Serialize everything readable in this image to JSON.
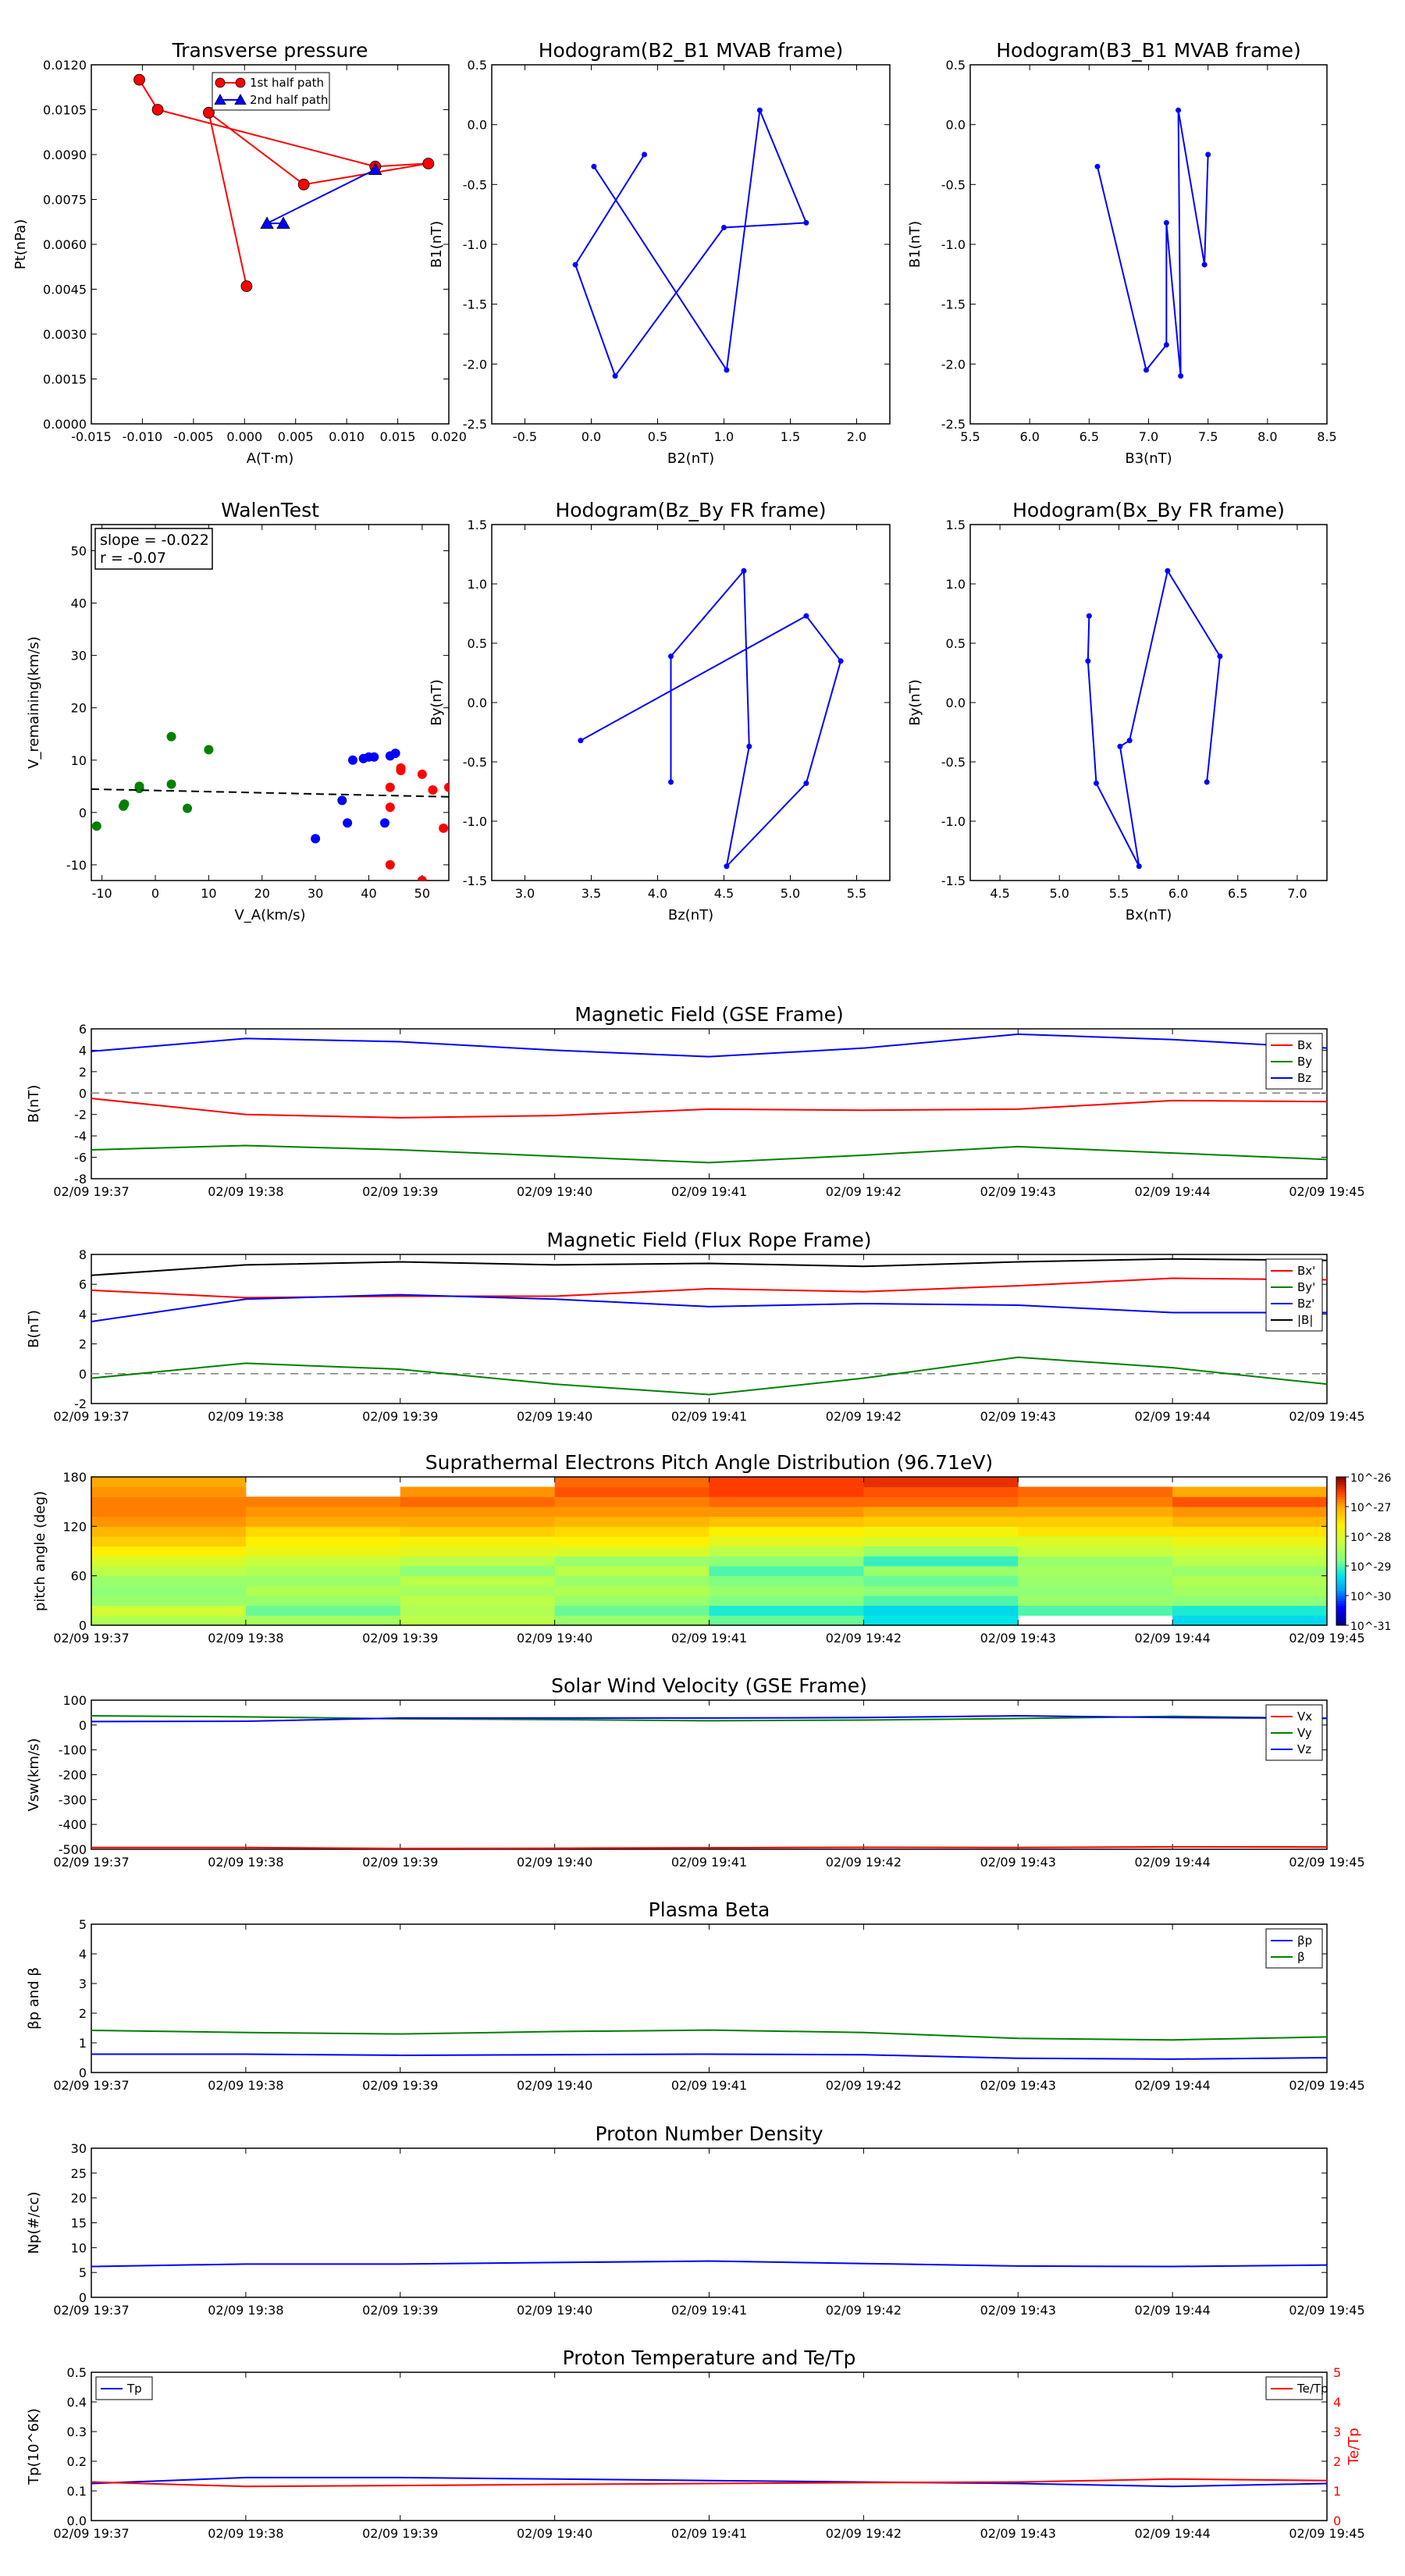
{
  "colors": {
    "red": "#ff0000",
    "green": "#008000",
    "blue": "#0000ff",
    "black": "#000000",
    "grid": "#7f7f7f"
  },
  "chart_data": [
    {
      "id": "transverse-pressure",
      "type": "line",
      "title": "Transverse pressure",
      "xlabel": "A(T·m)",
      "ylabel": "Pt(nPa)",
      "xlim": [
        -0.015,
        0.02
      ],
      "ylim": [
        0,
        0.012
      ],
      "xticks": [
        "-0.015",
        "-0.010",
        "-0.005",
        "0.000",
        "0.005",
        "0.010",
        "0.015",
        "0.020"
      ],
      "yticks": [
        "0.0000",
        "0.0015",
        "0.0030",
        "0.0045",
        "0.0060",
        "0.0075",
        "0.0090",
        "0.0105",
        "0.0120"
      ],
      "series": [
        {
          "name": "1st half path",
          "color": "red",
          "marker": "circle",
          "x": [
            0.0002,
            -0.0035,
            0.0058,
            0.018,
            0.0128,
            -0.0085,
            -0.0103
          ],
          "y": [
            0.0046,
            0.0104,
            0.008,
            0.0087,
            0.0086,
            0.0105,
            0.0115
          ]
        },
        {
          "name": "2nd half path",
          "color": "blue",
          "marker": "triangle",
          "x": [
            0.0128,
            0.0022,
            0.0038
          ],
          "y": [
            0.0085,
            0.0067,
            0.0067
          ]
        }
      ],
      "legend": "top"
    },
    {
      "id": "hodogram-b2-b1",
      "type": "line",
      "title": "Hodogram(B2_B1 MVAB frame)",
      "xlabel": "B2(nT)",
      "ylabel": "B1(nT)",
      "xlim": [
        -0.75,
        2.25
      ],
      "ylim": [
        -2.5,
        0.5
      ],
      "xticks": [
        "-0.5",
        "0.0",
        "0.5",
        "1.0",
        "1.5",
        "2.0"
      ],
      "yticks": [
        "-2.5",
        "-2.0",
        "-1.5",
        "-1.0",
        "-0.5",
        "0.0",
        "0.5"
      ],
      "series": [
        {
          "color": "blue",
          "marker": "dot",
          "x": [
            0.4,
            -0.12,
            0.18,
            1.0,
            1.62,
            1.27,
            1.02,
            0.02
          ],
          "y": [
            -0.25,
            -1.17,
            -2.1,
            -0.86,
            -0.82,
            0.12,
            -2.05,
            -0.35
          ]
        }
      ]
    },
    {
      "id": "hodogram-b3-b1",
      "type": "line",
      "title": "Hodogram(B3_B1 MVAB frame)",
      "xlabel": "B3(nT)",
      "ylabel": "B1(nT)",
      "xlim": [
        5.5,
        8.5
      ],
      "ylim": [
        -2.5,
        0.5
      ],
      "xticks": [
        "5.5",
        "6.0",
        "6.5",
        "7.0",
        "7.5",
        "8.0",
        "8.5"
      ],
      "yticks": [
        "-2.5",
        "-2.0",
        "-1.5",
        "-1.0",
        "-0.5",
        "0.0",
        "0.5"
      ],
      "series": [
        {
          "color": "blue",
          "marker": "dot",
          "x": [
            6.57,
            6.98,
            7.15,
            7.15,
            7.27,
            7.25,
            7.47,
            7.5
          ],
          "y": [
            -0.35,
            -2.05,
            -1.84,
            -0.82,
            -2.1,
            0.12,
            -1.17,
            -0.25
          ]
        }
      ]
    },
    {
      "id": "walen-test",
      "type": "scatter",
      "title": "WalenTest",
      "xlabel": "V_A(km/s)",
      "ylabel": "V_remaining(km/s)",
      "xlim": [
        -12,
        55
      ],
      "ylim": [
        -13,
        55
      ],
      "xticks": [
        "-10",
        "0",
        "10",
        "20",
        "30",
        "40",
        "50"
      ],
      "yticks": [
        "-10",
        "0",
        "10",
        "20",
        "30",
        "40",
        "50"
      ],
      "annotation": [
        "slope = -0.022",
        "r = -0.07"
      ],
      "fit": {
        "slope": -0.022,
        "intercept": 4.2
      },
      "series": [
        {
          "color": "green",
          "x": [
            -11,
            -6,
            -5.8,
            -3,
            -3,
            3,
            3,
            6,
            10
          ],
          "y": [
            -2.6,
            1.2,
            1.6,
            4.6,
            5.0,
            14.5,
            5.4,
            0.8,
            12.0
          ]
        },
        {
          "color": "blue",
          "x": [
            30,
            35,
            36,
            37,
            39,
            40,
            41,
            43,
            44,
            45
          ],
          "y": [
            -5,
            2.3,
            -2,
            10,
            10.3,
            10.6,
            10.6,
            -2,
            10.8,
            11.3
          ]
        },
        {
          "color": "red",
          "x": [
            44,
            44,
            44,
            46,
            46,
            50,
            52,
            54,
            55,
            50
          ],
          "y": [
            -10,
            1,
            4.8,
            8,
            8.5,
            7.3,
            4.3,
            -3,
            4.8,
            -13
          ]
        }
      ]
    },
    {
      "id": "hodogram-bz-by",
      "type": "line",
      "title": "Hodogram(Bz_By FR frame)",
      "xlabel": "Bz(nT)",
      "ylabel": "By(nT)",
      "xlim": [
        2.75,
        5.75
      ],
      "ylim": [
        -1.5,
        1.5
      ],
      "xticks": [
        "3.0",
        "3.5",
        "4.0",
        "4.5",
        "5.0",
        "5.5"
      ],
      "yticks": [
        "-1.5",
        "-1.0",
        "-0.5",
        "0.0",
        "0.5",
        "1.0",
        "1.5"
      ],
      "series": [
        {
          "color": "blue",
          "marker": "dot",
          "x": [
            3.42,
            5.12,
            5.38,
            5.12,
            4.52,
            4.69,
            4.65,
            4.1,
            4.1
          ],
          "y": [
            -0.32,
            0.73,
            0.35,
            -0.68,
            -1.38,
            -0.37,
            1.11,
            0.39,
            -0.67
          ]
        }
      ]
    },
    {
      "id": "hodogram-bx-by",
      "type": "line",
      "title": "Hodogram(Bx_By FR frame)",
      "xlabel": "Bx(nT)",
      "ylabel": "By(nT)",
      "xlim": [
        4.25,
        7.25
      ],
      "ylim": [
        -1.5,
        1.5
      ],
      "xticks": [
        "4.5",
        "5.0",
        "5.5",
        "6.0",
        "6.5",
        "7.0"
      ],
      "yticks": [
        "-1.5",
        "-1.0",
        "-0.5",
        "0.0",
        "0.5",
        "1.0",
        "1.5"
      ],
      "series": [
        {
          "color": "blue",
          "marker": "dot",
          "x": [
            5.25,
            5.24,
            5.31,
            5.67,
            5.51,
            5.59,
            5.91,
            6.35,
            6.24
          ],
          "y": [
            0.73,
            0.35,
            -0.68,
            -1.38,
            -0.37,
            -0.32,
            1.11,
            0.39,
            -0.67
          ]
        }
      ]
    },
    {
      "id": "mag-gse",
      "type": "line",
      "title": "Magnetic Field (GSE Frame)",
      "ylabel": "B(nT)",
      "ylim": [
        -8,
        6
      ],
      "yticks": [
        "-8",
        "-6",
        "-4",
        "-2",
        "0",
        "2",
        "4",
        "6"
      ],
      "x": [
        "02/09 19:37",
        "02/09 19:38",
        "02/09 19:39",
        "02/09 19:40",
        "02/09 19:41",
        "02/09 19:42",
        "02/09 19:43",
        "02/09 19:44",
        "02/09 19:45"
      ],
      "zero_line": true,
      "series": [
        {
          "name": "Bx",
          "color": "red",
          "values": [
            -0.5,
            -2.0,
            -2.3,
            -2.1,
            -1.5,
            -1.6,
            -1.5,
            -0.7,
            -0.8
          ]
        },
        {
          "name": "By",
          "color": "green",
          "values": [
            -5.3,
            -4.9,
            -5.3,
            -5.9,
            -6.5,
            -5.8,
            -5.0,
            -5.6,
            -6.2
          ]
        },
        {
          "name": "Bz",
          "color": "blue",
          "values": [
            3.9,
            5.1,
            4.8,
            4.0,
            3.4,
            4.2,
            5.5,
            5.0,
            4.2
          ]
        }
      ],
      "legend": "top-right"
    },
    {
      "id": "mag-fr",
      "type": "line",
      "title": "Magnetic Field (Flux Rope Frame)",
      "ylabel": "B(nT)",
      "ylim": [
        -2,
        8
      ],
      "yticks": [
        "-2",
        "0",
        "2",
        "4",
        "6",
        "8"
      ],
      "x": [
        "02/09 19:37",
        "02/09 19:38",
        "02/09 19:39",
        "02/09 19:40",
        "02/09 19:41",
        "02/09 19:42",
        "02/09 19:43",
        "02/09 19:44",
        "02/09 19:45"
      ],
      "zero_line": true,
      "series": [
        {
          "name": "Bx'",
          "color": "red",
          "values": [
            5.6,
            5.1,
            5.2,
            5.2,
            5.7,
            5.5,
            5.9,
            6.4,
            6.3
          ]
        },
        {
          "name": "By'",
          "color": "green",
          "values": [
            -0.3,
            0.7,
            0.3,
            -0.7,
            -1.4,
            -0.3,
            1.1,
            0.4,
            -0.7
          ]
        },
        {
          "name": "Bz'",
          "color": "blue",
          "values": [
            3.5,
            5.0,
            5.3,
            5.0,
            4.5,
            4.7,
            4.6,
            4.1,
            4.1
          ]
        },
        {
          "name": "|B|",
          "color": "black",
          "values": [
            6.6,
            7.3,
            7.5,
            7.3,
            7.4,
            7.2,
            7.5,
            7.7,
            7.6
          ]
        }
      ],
      "legend": "top-right"
    },
    {
      "id": "pad",
      "type": "heatmap",
      "title": "Suprathermal Electrons Pitch Angle Distribution (96.71eV)",
      "ylabel": "pitch angle (deg)",
      "ylim": [
        0,
        180
      ],
      "yticks": [
        "0",
        "60",
        "120",
        "180"
      ],
      "x": [
        "02/09 19:37",
        "02/09 19:38",
        "02/09 19:39",
        "02/09 19:40",
        "02/09 19:41",
        "02/09 19:42",
        "02/09 19:43",
        "02/09 19:44",
        "02/09 19:45"
      ],
      "colorbar_ticks": [
        "10^-26",
        "10^-27",
        "10^-28",
        "10^-29",
        "10^-30",
        "10^-31"
      ],
      "columns": [
        [
          -28.4,
          -28.1,
          -28.6,
          -28.7,
          -28.6,
          -28.3,
          -28.0,
          -27.6,
          -27.3,
          -27.1,
          -26.9,
          -26.8,
          -26.8,
          -26.9,
          -27.0
        ],
        [
          -28.5,
          -28.9,
          -28.6,
          -28.4,
          -28.6,
          -28.4,
          -28.2,
          -27.8,
          -27.6,
          -27.4,
          -27.0,
          -26.9,
          -26.8,
          -26.7,
          -27.0
        ],
        [
          -28.3,
          -28.4,
          -28.3,
          -28.5,
          -28.3,
          -28.7,
          -28.3,
          -27.9,
          -27.7,
          -27.3,
          -27.0,
          -26.9,
          -26.7,
          -26.9,
          -27.1
        ],
        [
          -28.6,
          -28.9,
          -28.6,
          -28.4,
          -28.6,
          -28.3,
          -28.6,
          -28.0,
          -27.6,
          -27.4,
          -27.1,
          -26.9,
          -26.8,
          -26.6,
          -26.7
        ],
        [
          -28.9,
          -29.2,
          -28.8,
          -28.6,
          -28.8,
          -29.0,
          -28.7,
          -28.3,
          -27.9,
          -27.6,
          -27.2,
          -26.9,
          -26.7,
          -26.5,
          -26.5
        ],
        [
          -29.3,
          -29.4,
          -29.0,
          -28.7,
          -28.9,
          -28.6,
          -29.1,
          -28.6,
          -28.0,
          -27.7,
          -27.3,
          -27.0,
          -26.7,
          -26.6,
          -26.4
        ],
        [
          -29.4,
          -29.0,
          -28.6,
          -28.7,
          -28.6,
          -28.5,
          -28.6,
          -28.2,
          -28.0,
          -27.5,
          -27.3,
          -27.0,
          -26.8,
          -26.7,
          -26.6
        ],
        [
          -29.4,
          -29.2,
          -28.7,
          -28.5,
          -28.4,
          -28.6,
          -28.3,
          -28.1,
          -27.8,
          -27.5,
          -27.1,
          -26.9,
          -26.6,
          -27.0,
          -26.8
        ]
      ]
    },
    {
      "id": "sw-velocity",
      "type": "line",
      "title": "Solar Wind Velocity (GSE Frame)",
      "ylabel": "Vsw(km/s)",
      "ylim": [
        -500,
        100
      ],
      "yticks": [
        "-500",
        "-400",
        "-300",
        "-200",
        "-100",
        "0",
        "100"
      ],
      "x": [
        "02/09 19:37",
        "02/09 19:38",
        "02/09 19:39",
        "02/09 19:40",
        "02/09 19:41",
        "02/09 19:42",
        "02/09 19:43",
        "02/09 19:44",
        "02/09 19:45"
      ],
      "series": [
        {
          "name": "Vx",
          "color": "red",
          "values": [
            -493,
            -493,
            -497,
            -496,
            -494,
            -492,
            -493,
            -490,
            -491
          ]
        },
        {
          "name": "Vy",
          "color": "green",
          "values": [
            37,
            33,
            25,
            22,
            17,
            20,
            26,
            35,
            27
          ]
        },
        {
          "name": "Vz",
          "color": "blue",
          "values": [
            14,
            15,
            28,
            28,
            28,
            30,
            37,
            30,
            27
          ]
        }
      ],
      "legend": "top-right"
    },
    {
      "id": "plasma-beta",
      "type": "line",
      "title": "Plasma Beta",
      "ylabel": "βp and β",
      "ylim": [
        0,
        5
      ],
      "yticks": [
        "0",
        "1",
        "2",
        "3",
        "4",
        "5"
      ],
      "x": [
        "02/09 19:37",
        "02/09 19:38",
        "02/09 19:39",
        "02/09 19:40",
        "02/09 19:41",
        "02/09 19:42",
        "02/09 19:43",
        "02/09 19:44",
        "02/09 19:45"
      ],
      "series": [
        {
          "name": "βp",
          "color": "blue",
          "values": [
            0.62,
            0.62,
            0.58,
            0.6,
            0.62,
            0.6,
            0.48,
            0.45,
            0.5
          ]
        },
        {
          "name": "β",
          "color": "green",
          "values": [
            1.42,
            1.35,
            1.3,
            1.38,
            1.43,
            1.35,
            1.15,
            1.1,
            1.2
          ]
        }
      ],
      "legend": "top-right"
    },
    {
      "id": "np",
      "type": "line",
      "title": "Proton Number Density",
      "ylabel": "Np(#/cc)",
      "ylim": [
        0,
        30
      ],
      "yticks": [
        "0",
        "5",
        "10",
        "15",
        "20",
        "25",
        "30"
      ],
      "x": [
        "02/09 19:37",
        "02/09 19:38",
        "02/09 19:39",
        "02/09 19:40",
        "02/09 19:41",
        "02/09 19:42",
        "02/09 19:43",
        "02/09 19:44",
        "02/09 19:45"
      ],
      "series": [
        {
          "color": "blue",
          "values": [
            6.2,
            6.7,
            6.7,
            7.0,
            7.3,
            6.8,
            6.3,
            6.2,
            6.5
          ]
        }
      ]
    },
    {
      "id": "tp",
      "type": "line",
      "title": "Proton Temperature and Te/Tp",
      "ylabel": "Tp(10^6K)",
      "ylabel_right": "Te/Tp",
      "ylim": [
        0,
        0.5
      ],
      "yticks": [
        "0.0",
        "0.1",
        "0.2",
        "0.3",
        "0.4",
        "0.5"
      ],
      "ylim_right": [
        0,
        5
      ],
      "yticks_right": [
        "0",
        "1",
        "2",
        "3",
        "4",
        "5"
      ],
      "x": [
        "02/09 19:37",
        "02/09 19:38",
        "02/09 19:39",
        "02/09 19:40",
        "02/09 19:41",
        "02/09 19:42",
        "02/09 19:43",
        "02/09 19:44",
        "02/09 19:45"
      ],
      "series": [
        {
          "name": "Tp",
          "color": "blue",
          "axis": "left",
          "values": [
            0.125,
            0.145,
            0.145,
            0.14,
            0.135,
            0.13,
            0.125,
            0.115,
            0.125
          ]
        },
        {
          "name": "Te/Tp",
          "color": "red",
          "axis": "right",
          "values": [
            1.3,
            1.15,
            1.18,
            1.22,
            1.25,
            1.28,
            1.3,
            1.4,
            1.35
          ]
        }
      ]
    }
  ]
}
